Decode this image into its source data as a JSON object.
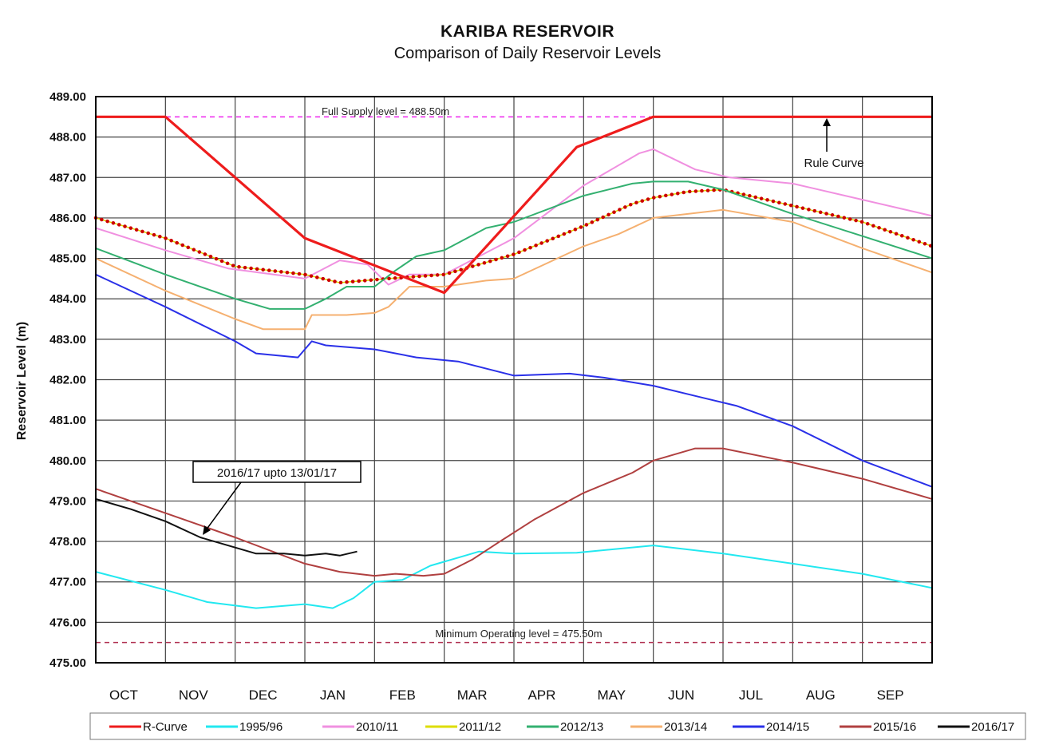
{
  "chart_data": {
    "type": "line",
    "title": "KARIBA  RESERVOIR",
    "subtitle": "Comparison  of  Daily  Reservoir  Levels",
    "ylabel": "Reservoir Level (m)",
    "xlabel": "",
    "ylim": [
      475.0,
      489.0
    ],
    "xlim": [
      0,
      12
    ],
    "yticks": [
      "475.00",
      "476.00",
      "477.00",
      "478.00",
      "479.00",
      "480.00",
      "481.00",
      "482.00",
      "483.00",
      "484.00",
      "485.00",
      "486.00",
      "487.00",
      "488.00",
      "489.00"
    ],
    "months": [
      "OCT",
      "NOV",
      "DEC",
      "JAN",
      "FEB",
      "MAR",
      "APR",
      "MAY",
      "JUN",
      "JUL",
      "AUG",
      "SEP"
    ],
    "grid": true,
    "legend_position": "bottom",
    "reference_lines": [
      {
        "label": "Full Supply level = 488.50m",
        "y": 488.5,
        "color": "#ee22ee"
      },
      {
        "label": "Minimum  Operating level = 475.50m",
        "y": 475.5,
        "color": "#b03050"
      }
    ],
    "annotations": {
      "rule_curve": "Rule Curve",
      "callout": "2016/17 upto 13/01/17"
    },
    "series": [
      {
        "name": "R-Curve",
        "color": "#ee1c1c",
        "style": "solid-thick",
        "points": [
          [
            0,
            488.5
          ],
          [
            1.0,
            488.5
          ],
          [
            3.0,
            485.5
          ],
          [
            5.0,
            484.15
          ],
          [
            6.9,
            487.75
          ],
          [
            8.0,
            488.5
          ],
          [
            12,
            488.5
          ]
        ]
      },
      {
        "name": "1995/96",
        "color": "#22e8f0",
        "style": "solid",
        "points": [
          [
            0,
            477.25
          ],
          [
            1,
            476.8
          ],
          [
            1.6,
            476.5
          ],
          [
            2.3,
            476.35
          ],
          [
            3.0,
            476.45
          ],
          [
            3.4,
            476.35
          ],
          [
            3.7,
            476.6
          ],
          [
            4.0,
            477.0
          ],
          [
            4.4,
            477.05
          ],
          [
            4.8,
            477.4
          ],
          [
            5.3,
            477.65
          ],
          [
            5.5,
            477.75
          ],
          [
            6.0,
            477.7
          ],
          [
            6.9,
            477.72
          ],
          [
            8.0,
            477.9
          ],
          [
            9.0,
            477.7
          ],
          [
            10.0,
            477.45
          ],
          [
            11.0,
            477.2
          ],
          [
            12,
            476.85
          ]
        ]
      },
      {
        "name": "2010/11",
        "color": "#f090e0",
        "style": "solid",
        "points": [
          [
            0,
            485.75
          ],
          [
            1,
            485.2
          ],
          [
            1.9,
            484.75
          ],
          [
            3.0,
            484.5
          ],
          [
            3.5,
            484.95
          ],
          [
            3.9,
            484.85
          ],
          [
            4.2,
            484.35
          ],
          [
            4.5,
            484.6
          ],
          [
            5.0,
            484.6
          ],
          [
            6.0,
            485.5
          ],
          [
            7.0,
            486.8
          ],
          [
            7.8,
            487.6
          ],
          [
            8.0,
            487.7
          ],
          [
            8.6,
            487.2
          ],
          [
            9.1,
            487.0
          ],
          [
            10.0,
            486.85
          ],
          [
            11.0,
            486.45
          ],
          [
            12,
            486.05
          ]
        ]
      },
      {
        "name": "2011/12",
        "color": "#dddd00",
        "style": "dotted",
        "points": [
          [
            0,
            486.0
          ],
          [
            1,
            485.5
          ],
          [
            2,
            484.8
          ],
          [
            3,
            484.6
          ],
          [
            3.5,
            484.4
          ],
          [
            4.2,
            484.5
          ],
          [
            5.0,
            484.6
          ],
          [
            6.0,
            485.1
          ],
          [
            7.0,
            485.8
          ],
          [
            7.7,
            486.35
          ],
          [
            8.0,
            486.5
          ],
          [
            8.5,
            486.65
          ],
          [
            9.0,
            486.7
          ],
          [
            10.0,
            486.3
          ],
          [
            11.0,
            485.9
          ],
          [
            12,
            485.3
          ]
        ]
      },
      {
        "name": "2012/13",
        "color": "#33b070",
        "style": "solid",
        "points": [
          [
            0,
            485.25
          ],
          [
            1,
            484.6
          ],
          [
            2,
            484.0
          ],
          [
            2.5,
            483.75
          ],
          [
            3.0,
            483.75
          ],
          [
            3.3,
            484.0
          ],
          [
            3.6,
            484.3
          ],
          [
            4.0,
            484.3
          ],
          [
            4.3,
            484.7
          ],
          [
            4.6,
            485.05
          ],
          [
            5.0,
            485.2
          ],
          [
            5.6,
            485.75
          ],
          [
            6.0,
            485.9
          ],
          [
            7.0,
            486.55
          ],
          [
            7.7,
            486.85
          ],
          [
            8.0,
            486.9
          ],
          [
            8.5,
            486.9
          ],
          [
            9.0,
            486.7
          ],
          [
            10.0,
            486.1
          ],
          [
            11.0,
            485.55
          ],
          [
            12,
            485.0
          ]
        ]
      },
      {
        "name": "2013/14",
        "color": "#f5b070",
        "style": "solid",
        "points": [
          [
            0,
            485.0
          ],
          [
            1,
            484.2
          ],
          [
            2,
            483.5
          ],
          [
            2.4,
            483.25
          ],
          [
            3.0,
            483.25
          ],
          [
            3.1,
            483.6
          ],
          [
            3.6,
            483.6
          ],
          [
            4.0,
            483.65
          ],
          [
            4.2,
            483.8
          ],
          [
            4.5,
            484.3
          ],
          [
            5.0,
            484.3
          ],
          [
            5.6,
            484.45
          ],
          [
            6.0,
            484.5
          ],
          [
            7.0,
            485.3
          ],
          [
            7.5,
            485.6
          ],
          [
            8.0,
            486.0
          ],
          [
            9.0,
            486.2
          ],
          [
            10.0,
            485.9
          ],
          [
            11.0,
            485.25
          ],
          [
            12,
            484.65
          ]
        ]
      },
      {
        "name": "2014/15",
        "color": "#2a30e8",
        "style": "solid",
        "points": [
          [
            0,
            484.6
          ],
          [
            1,
            483.8
          ],
          [
            2,
            482.95
          ],
          [
            2.3,
            482.65
          ],
          [
            2.9,
            482.55
          ],
          [
            3.1,
            482.95
          ],
          [
            3.3,
            482.85
          ],
          [
            4.0,
            482.75
          ],
          [
            4.6,
            482.55
          ],
          [
            5.2,
            482.45
          ],
          [
            6.0,
            482.1
          ],
          [
            6.8,
            482.15
          ],
          [
            7.3,
            482.05
          ],
          [
            8.0,
            481.85
          ],
          [
            8.6,
            481.6
          ],
          [
            9.2,
            481.35
          ],
          [
            10.0,
            480.85
          ],
          [
            11.0,
            480.0
          ],
          [
            12,
            479.35
          ]
        ]
      },
      {
        "name": "2015/16",
        "color": "#b04040",
        "style": "solid",
        "points": [
          [
            0,
            479.3
          ],
          [
            1,
            478.7
          ],
          [
            2,
            478.1
          ],
          [
            3.0,
            477.45
          ],
          [
            3.5,
            477.25
          ],
          [
            4.0,
            477.15
          ],
          [
            4.3,
            477.2
          ],
          [
            4.7,
            477.15
          ],
          [
            5.0,
            477.2
          ],
          [
            5.4,
            477.55
          ],
          [
            5.8,
            478.0
          ],
          [
            6.3,
            478.55
          ],
          [
            7.0,
            479.2
          ],
          [
            7.7,
            479.7
          ],
          [
            8.0,
            480.0
          ],
          [
            8.6,
            480.3
          ],
          [
            9.0,
            480.3
          ],
          [
            10.0,
            479.95
          ],
          [
            11.0,
            479.55
          ],
          [
            12,
            479.05
          ]
        ]
      },
      {
        "name": "2016/17",
        "color": "#111111",
        "style": "solid",
        "points": [
          [
            0,
            479.05
          ],
          [
            0.5,
            478.8
          ],
          [
            1.0,
            478.5
          ],
          [
            1.5,
            478.1
          ],
          [
            2.0,
            477.85
          ],
          [
            2.3,
            477.7
          ],
          [
            2.7,
            477.7
          ],
          [
            3.0,
            477.65
          ],
          [
            3.3,
            477.7
          ],
          [
            3.5,
            477.65
          ],
          [
            3.75,
            477.75
          ]
        ]
      }
    ]
  }
}
